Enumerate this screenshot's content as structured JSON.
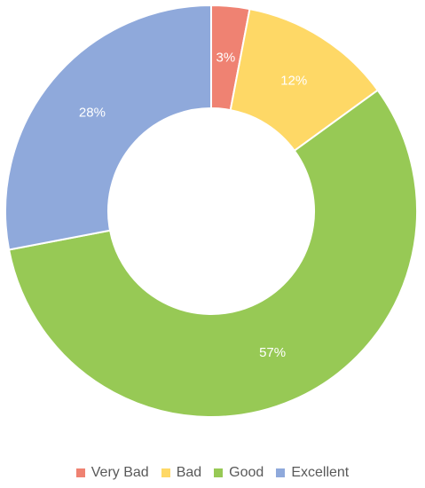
{
  "chart_data": {
    "type": "pie",
    "variant": "donut",
    "legend_position": "bottom",
    "categories": [
      "Very Bad",
      "Bad",
      "Good",
      "Excellent"
    ],
    "values": [
      3,
      12,
      57,
      28
    ],
    "labels": [
      "3%",
      "12%",
      "57%",
      "28%"
    ],
    "colors": [
      "#ef8272",
      "#fed866",
      "#97c955",
      "#8fa9db"
    ]
  }
}
